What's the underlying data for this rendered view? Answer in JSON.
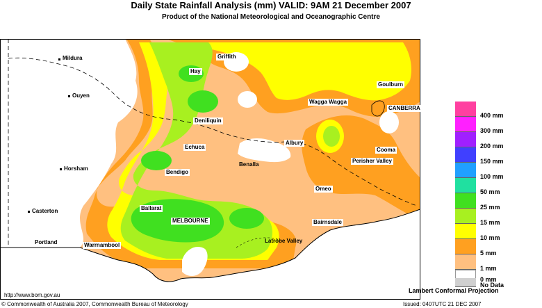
{
  "header": {
    "title": "Daily State Rainfall Analysis (mm)   VALID: 9AM 21 December 2007",
    "subtitle": "Product of the National Meteorological and Oceanographic Centre"
  },
  "towns": [
    {
      "name": "Mildura"
    },
    {
      "name": "Ouyen"
    },
    {
      "name": "Hay"
    },
    {
      "name": "Griffith"
    },
    {
      "name": "Goulburn"
    },
    {
      "name": "Wagga Wagga"
    },
    {
      "name": "CANBERRA"
    },
    {
      "name": "Deniliquin"
    },
    {
      "name": "Echuca"
    },
    {
      "name": "Albury"
    },
    {
      "name": "Cooma"
    },
    {
      "name": "Perisher Valley"
    },
    {
      "name": "Horsham"
    },
    {
      "name": "Bendigo"
    },
    {
      "name": "Benalla"
    },
    {
      "name": "Omeo"
    },
    {
      "name": "Ballarat"
    },
    {
      "name": "Casterton"
    },
    {
      "name": "MELBOURNE"
    },
    {
      "name": "Bairnsdale"
    },
    {
      "name": "Portland"
    },
    {
      "name": "Warrnambool"
    },
    {
      "name": "Latrobe Valley"
    }
  ],
  "legend": {
    "items": [
      {
        "label": "400 mm",
        "color": "#ff40a0"
      },
      {
        "label": "300 mm",
        "color": "#ff20ff"
      },
      {
        "label": "200 mm",
        "color": "#a020ff"
      },
      {
        "label": "150 mm",
        "color": "#4040ff"
      },
      {
        "label": "100 mm",
        "color": "#20a0ff"
      },
      {
        "label": "50 mm",
        "color": "#20e0a0"
      },
      {
        "label": "25 mm",
        "color": "#40e020"
      },
      {
        "label": "15 mm",
        "color": "#a8f020"
      },
      {
        "label": "10 mm",
        "color": "#ffff00"
      },
      {
        "label": "5 mm",
        "color": "#ffa020"
      },
      {
        "label": "1 mm",
        "color": "#ffc080"
      },
      {
        "label": "0 mm",
        "color": "#ffffff"
      },
      {
        "label": "No Data",
        "color": "#d0d0d0"
      }
    ]
  },
  "footer": {
    "url": "http://www.bom.gov.au",
    "copyright": "© Commonwealth of Australia 2007, Commonwealth Bureau of Meteorology",
    "projection": "Lambert Conformal Projection",
    "issued": "Issued: 0407UTC 21 DEC 2007"
  }
}
